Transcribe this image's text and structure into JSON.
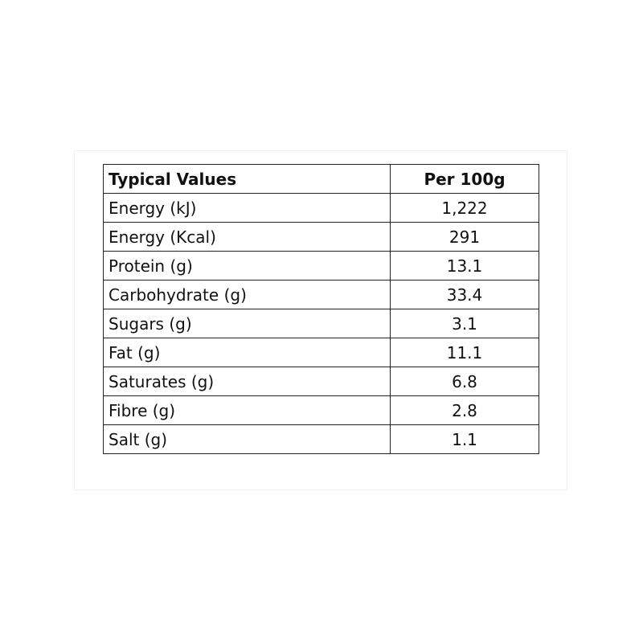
{
  "table": {
    "header": [
      "Typical Values",
      "Per 100g"
    ],
    "rows": [
      [
        "Energy (kJ)",
        "1,222"
      ],
      [
        "Energy (Kcal)",
        "291"
      ],
      [
        "Protein (g)",
        "13.1"
      ],
      [
        "Carbohydrate (g)",
        "33.4"
      ],
      [
        "Sugars (g)",
        "3.1"
      ],
      [
        "Fat (g)",
        "11.1"
      ],
      [
        "Saturates (g)",
        "6.8"
      ],
      [
        "Fibre (g)",
        "2.8"
      ],
      [
        "Salt (g)",
        "1.1"
      ]
    ]
  }
}
